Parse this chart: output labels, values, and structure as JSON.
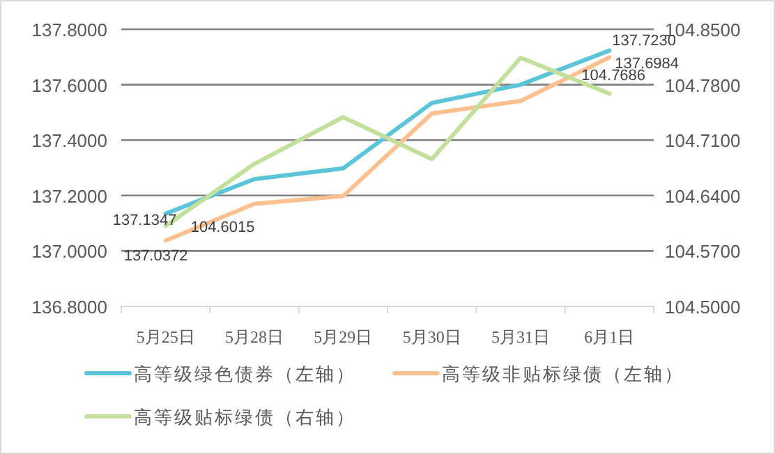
{
  "chart_data": {
    "type": "line",
    "categories": [
      "5月25日",
      "5月28日",
      "5月29日",
      "5月30日",
      "5月31日",
      "6月1日"
    ],
    "series": [
      {
        "name": "高等级绿色债券（左轴）",
        "color": "#5bc4d8",
        "axis": "y",
        "values": [
          137.1347,
          137.259,
          137.298,
          137.534,
          137.6,
          137.723
        ],
        "value_labels": [
          "137.1347",
          null,
          null,
          null,
          null,
          "137.7230"
        ]
      },
      {
        "name": "高等级非贴标绿债（左轴）",
        "color": "#fdc08e",
        "axis": "y",
        "values": [
          137.0372,
          137.17,
          137.198,
          137.496,
          137.541,
          137.6984
        ],
        "value_labels": [
          "137.0372",
          null,
          null,
          null,
          null,
          "137.6984"
        ]
      },
      {
        "name": "高等级贴标绿债（右轴）",
        "color": "#c3df9c",
        "axis": "y2",
        "values": [
          104.6015,
          104.68,
          104.739,
          104.686,
          104.814,
          104.7686
        ],
        "value_labels": [
          "104.6015",
          null,
          null,
          null,
          null,
          "104.7686"
        ]
      }
    ],
    "ylim": [
      136.8,
      137.8
    ],
    "yticks": [
      {
        "value": 136.8,
        "label": "136.8000"
      },
      {
        "value": 137.0,
        "label": "137.0000"
      },
      {
        "value": 137.2,
        "label": "137.2000"
      },
      {
        "value": 137.4,
        "label": "137.4000"
      },
      {
        "value": 137.6,
        "label": "137.6000"
      },
      {
        "value": 137.8,
        "label": "137.8000"
      }
    ],
    "y2lim": [
      104.5,
      104.85
    ],
    "y2ticks": [
      {
        "value": 104.5,
        "label": "104.5000"
      },
      {
        "value": 104.57,
        "label": "104.5700"
      },
      {
        "value": 104.64,
        "label": "104.6400"
      },
      {
        "value": 104.71,
        "label": "104.7100"
      },
      {
        "value": 104.78,
        "label": "104.7800"
      },
      {
        "value": 104.85,
        "label": "104.8500"
      }
    ],
    "grid": "y",
    "legend": "bottom",
    "marker": "none",
    "line_style": "solid"
  }
}
